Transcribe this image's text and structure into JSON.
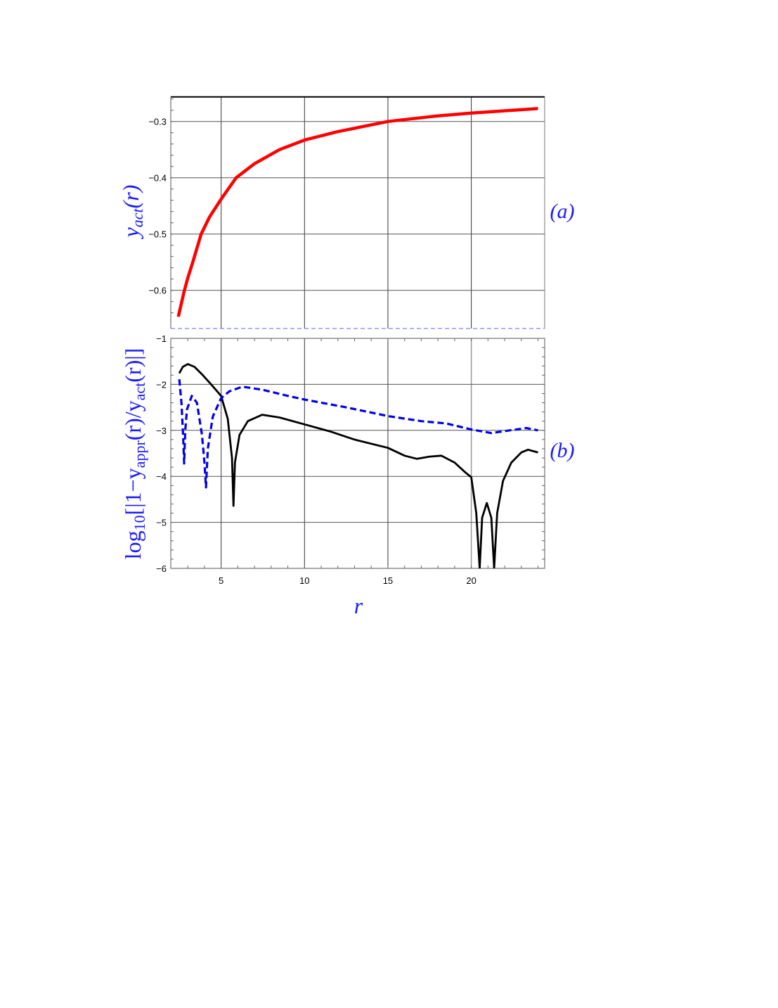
{
  "figure": {
    "panel_a_tag": "(a)",
    "panel_b_tag": "(b)",
    "xlabel": "r",
    "ylabel_a": {
      "base": "y",
      "sub": "act",
      "tail": "(r)"
    },
    "ylabel_b": {
      "p1": "log",
      "p1sub": "10",
      "p2": "[|1−y",
      "p2sub": "appr",
      "p3": "(r)/y",
      "p3sub": "act",
      "p4": "(r)|]"
    },
    "colors": {
      "red_curve": "#ff0000",
      "blue_dashed": "#0000ee",
      "black_curve": "#000000",
      "label_blue": "#1a1aff",
      "grid": "#555555",
      "separator_dash": "#8080ff"
    }
  },
  "chart_data": [
    {
      "type": "line",
      "panel": "(a)",
      "title": "",
      "xlabel": "r",
      "ylabel": "y_act(r)",
      "xlim": [
        2.0,
        24.4
      ],
      "ylim": [
        -0.667,
        -0.256
      ],
      "grid": true,
      "x_ticks": [
        5,
        10,
        15,
        20
      ],
      "y_ticks": [
        -0.3,
        -0.4,
        -0.5,
        -0.6
      ],
      "y_tick_labels": [
        "−0.3",
        "−0.4",
        "−0.5",
        "−0.6"
      ],
      "series": [
        {
          "name": "y_act(r)",
          "color": "#ff0000",
          "style": "solid",
          "x": [
            2.43,
            2.6,
            2.8,
            3.0,
            3.3,
            3.8,
            4.3,
            5.0,
            5.9,
            7.0,
            8.5,
            10.0,
            12.0,
            15.0,
            18.0,
            20.0,
            22.0,
            24.0
          ],
          "y": [
            -0.647,
            -0.625,
            -0.6,
            -0.578,
            -0.55,
            -0.5,
            -0.47,
            -0.438,
            -0.4,
            -0.375,
            -0.35,
            -0.333,
            -0.318,
            -0.3,
            -0.29,
            -0.285,
            -0.281,
            -0.277
          ]
        }
      ]
    },
    {
      "type": "line",
      "panel": "(b)",
      "title": "",
      "xlabel": "r",
      "ylabel": "log10[|1 − y_appr(r)/y_act(r)|]",
      "xlim": [
        2.0,
        24.4
      ],
      "ylim": [
        -6,
        -1
      ],
      "grid": true,
      "x_ticks": [
        5,
        10,
        15,
        20
      ],
      "x_tick_labels": [
        "5",
        "10",
        "15",
        "20"
      ],
      "y_ticks": [
        -1,
        -2,
        -3,
        -4,
        -5,
        -6
      ],
      "y_tick_labels": [
        "−1",
        "−2",
        "−3",
        "−4",
        "−5",
        "−6"
      ],
      "series": [
        {
          "name": "black (solid)",
          "color": "#000000",
          "style": "solid",
          "x": [
            2.49,
            2.7,
            3.0,
            3.4,
            3.9,
            4.4,
            5.0,
            5.4,
            5.65,
            5.74,
            5.83,
            6.1,
            6.6,
            7.46,
            8.5,
            10.0,
            11.5,
            13.0,
            15.0,
            16.0,
            16.74,
            17.5,
            18.2,
            19.0,
            19.6,
            20.0,
            20.3,
            20.5,
            20.65,
            20.93,
            21.2,
            21.37,
            21.55,
            21.9,
            22.4,
            23.0,
            23.4,
            24.0
          ],
          "y": [
            -1.76,
            -1.62,
            -1.56,
            -1.62,
            -1.8,
            -2.0,
            -2.25,
            -2.75,
            -3.6,
            -4.64,
            -3.7,
            -3.1,
            -2.8,
            -2.66,
            -2.72,
            -2.87,
            -3.02,
            -3.2,
            -3.38,
            -3.55,
            -3.62,
            -3.57,
            -3.55,
            -3.7,
            -3.9,
            -4.02,
            -4.8,
            -6.0,
            -4.9,
            -4.58,
            -4.9,
            -6.0,
            -4.8,
            -4.1,
            -3.7,
            -3.48,
            -3.42,
            -3.48
          ]
        },
        {
          "name": "blue (dashed)",
          "color": "#0000ee",
          "style": "dashed",
          "x": [
            2.49,
            2.62,
            2.72,
            2.78,
            2.85,
            2.95,
            3.24,
            3.55,
            3.85,
            4.0,
            4.09,
            4.2,
            4.5,
            5.0,
            5.5,
            6.28,
            7.5,
            9.0,
            10.0,
            12.5,
            15.0,
            17.0,
            18.5,
            20.0,
            21.2,
            22.3,
            23.3,
            24.0
          ],
          "y": [
            -1.89,
            -2.4,
            -3.1,
            -3.72,
            -3.0,
            -2.55,
            -2.25,
            -2.4,
            -3.1,
            -3.7,
            -4.24,
            -3.4,
            -2.7,
            -2.3,
            -2.15,
            -2.05,
            -2.12,
            -2.25,
            -2.33,
            -2.5,
            -2.69,
            -2.8,
            -2.85,
            -2.98,
            -3.06,
            -3.0,
            -2.95,
            -3.0
          ]
        }
      ]
    }
  ]
}
